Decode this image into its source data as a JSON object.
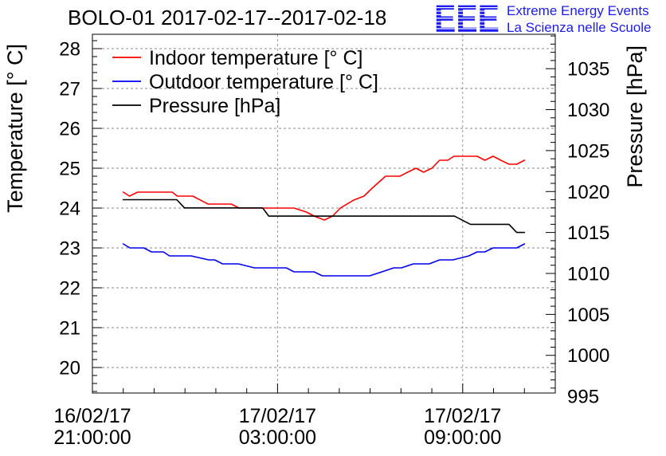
{
  "logo": {
    "mark": "EEE",
    "line1": "Extreme Energy Events",
    "line2": "La Scienza nelle Scuole",
    "color": "#1c1cf0"
  },
  "chart_data": {
    "type": "line",
    "title": "BOLO-01 2017-02-17--2017-02-18",
    "ylabel": "Temperature [° C]",
    "y2label": "Pressure [hPa]",
    "xlim": [
      "2017-02-16 21:00",
      "2017-02-17 12:00"
    ],
    "ylim": [
      19.36,
      28.36
    ],
    "y2lim": [
      995.4,
      1039.2
    ],
    "grid": true,
    "legend": "top-left",
    "x_ticks": [
      {
        "t": "2017-02-16 21:00",
        "date": "16/02/17",
        "time": "21:00:00"
      },
      {
        "t": "2017-02-17 03:00",
        "date": "17/02/17",
        "time": "03:00:00"
      },
      {
        "t": "2017-02-17 09:00",
        "date": "17/02/17",
        "time": "09:00:00"
      }
    ],
    "y_ticks": [
      20,
      21,
      22,
      23,
      24,
      25,
      26,
      27,
      28
    ],
    "y2_ticks": [
      995,
      1000,
      1005,
      1010,
      1015,
      1020,
      1025,
      1030,
      1035
    ],
    "series": [
      {
        "name": "Indoor temperature [° C]",
        "axis": "left",
        "color": "#ff0000",
        "x": [
          "2017-02-16 22:00",
          "2017-02-16 22:12",
          "2017-02-16 22:28",
          "2017-02-16 23:35",
          "2017-02-16 23:45",
          "2017-02-17 00:15",
          "2017-02-17 00:45",
          "2017-02-17 01:30",
          "2017-02-17 01:45",
          "2017-02-17 03:32",
          "2017-02-17 03:56",
          "2017-02-17 04:11",
          "2017-02-17 04:31",
          "2017-02-17 04:47",
          "2017-02-17 05:02",
          "2017-02-17 05:28",
          "2017-02-17 05:48",
          "2017-02-17 06:04",
          "2017-02-17 06:30",
          "2017-02-17 06:58",
          "2017-02-17 07:13",
          "2017-02-17 07:29",
          "2017-02-17 07:44",
          "2017-02-17 08:00",
          "2017-02-17 08:15",
          "2017-02-17 08:31",
          "2017-02-17 08:43",
          "2017-02-17 09:28",
          "2017-02-17 09:43",
          "2017-02-17 09:59",
          "2017-02-17 10:14",
          "2017-02-17 10:30",
          "2017-02-17 10:45",
          "2017-02-17 11:00"
        ],
        "y": [
          24.4,
          24.3,
          24.4,
          24.4,
          24.3,
          24.3,
          24.1,
          24.1,
          24.0,
          24.0,
          23.9,
          23.8,
          23.7,
          23.8,
          24.0,
          24.2,
          24.3,
          24.5,
          24.8,
          24.8,
          24.9,
          25.0,
          24.9,
          25.0,
          25.2,
          25.2,
          25.3,
          25.3,
          25.2,
          25.3,
          25.2,
          25.1,
          25.1,
          25.2
        ]
      },
      {
        "name": "Outdoor temperature [° C]",
        "axis": "left",
        "color": "#0000ee",
        "x": [
          "2017-02-16 22:00",
          "2017-02-16 22:13",
          "2017-02-16 22:40",
          "2017-02-16 22:55",
          "2017-02-16 23:18",
          "2017-02-16 23:30",
          "2017-02-17 00:12",
          "2017-02-17 00:46",
          "2017-02-17 00:58",
          "2017-02-17 01:13",
          "2017-02-17 01:44",
          "2017-02-17 02:15",
          "2017-02-17 03:17",
          "2017-02-17 03:32",
          "2017-02-17 04:11",
          "2017-02-17 04:27",
          "2017-02-17 05:59",
          "2017-02-17 06:23",
          "2017-02-17 06:46",
          "2017-02-17 07:01",
          "2017-02-17 07:24",
          "2017-02-17 07:55",
          "2017-02-17 08:15",
          "2017-02-17 08:41",
          "2017-02-17 09:12",
          "2017-02-17 09:28",
          "2017-02-17 09:43",
          "2017-02-17 09:59",
          "2017-02-17 10:45",
          "2017-02-17 11:00"
        ],
        "y": [
          23.1,
          23.0,
          23.0,
          22.9,
          22.9,
          22.8,
          22.8,
          22.7,
          22.7,
          22.6,
          22.6,
          22.5,
          22.5,
          22.4,
          22.4,
          22.3,
          22.3,
          22.4,
          22.5,
          22.5,
          22.6,
          22.6,
          22.7,
          22.7,
          22.8,
          22.9,
          22.9,
          23.0,
          23.0,
          23.1
        ]
      },
      {
        "name": "Pressure [hPa]",
        "axis": "right",
        "color": "#000000",
        "x": [
          "2017-02-16 22:00",
          "2017-02-16 23:44",
          "2017-02-16 23:59",
          "2017-02-17 02:31",
          "2017-02-17 02:43",
          "2017-02-17 08:44",
          "2017-02-17 09:15",
          "2017-02-17 10:30",
          "2017-02-17 10:45",
          "2017-02-17 11:00"
        ],
        "y": [
          1019,
          1019,
          1018,
          1018,
          1017,
          1017,
          1016,
          1016,
          1015,
          1015
        ]
      }
    ]
  }
}
